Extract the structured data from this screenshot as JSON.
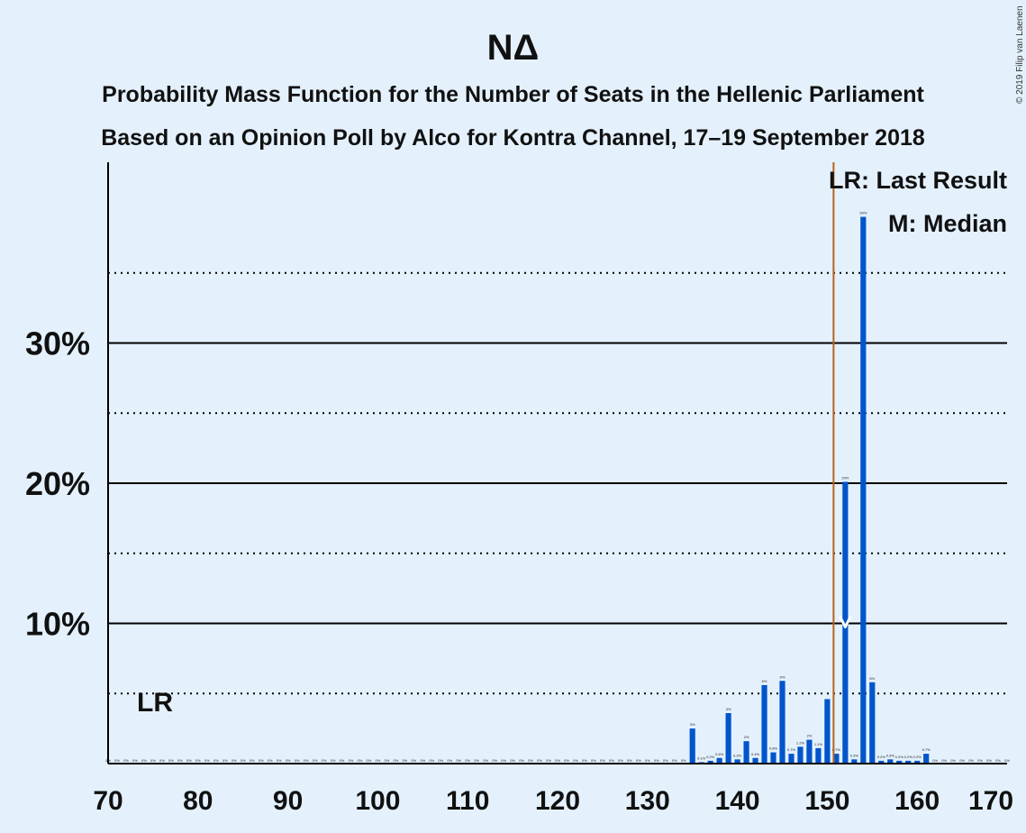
{
  "chart_data": {
    "type": "bar",
    "title": "ΝΔ",
    "subtitle_lines": [
      "Probability Mass Function for the Number of Seats in the Hellenic Parliament",
      "Based on an Opinion Poll by Alco for Kontra Channel, 17–19 September 2018"
    ],
    "copyright": "© 2019 Filip van Laenen",
    "xlim": [
      70,
      170
    ],
    "ylim": [
      0,
      42
    ],
    "x_ticks": [
      70,
      80,
      90,
      100,
      110,
      120,
      130,
      140,
      150,
      160,
      170
    ],
    "y_ticks_major": [
      {
        "value": 10,
        "label": "10%"
      },
      {
        "value": 20,
        "label": "20%"
      },
      {
        "value": 30,
        "label": "30%"
      }
    ],
    "y_gridlines_minor": [
      5,
      15,
      25,
      35
    ],
    "bar_color": "#0055cc",
    "last_result": {
      "seat": 151,
      "marker_label": "LR",
      "legend": "LR: Last Result",
      "color": "#b5651d"
    },
    "median": {
      "seat": 152,
      "marker_label": "M",
      "legend": "M: Median"
    },
    "seats": [
      135,
      136,
      137,
      138,
      139,
      140,
      141,
      142,
      143,
      144,
      145,
      146,
      147,
      148,
      149,
      150,
      151,
      152,
      153,
      154,
      155,
      156,
      157,
      158,
      159,
      160,
      161
    ],
    "values": [
      2.5,
      0.1,
      0.2,
      0.4,
      3.6,
      0.3,
      1.6,
      0.4,
      5.6,
      0.8,
      5.9,
      0.7,
      1.2,
      1.7,
      1.1,
      4.6,
      0.7,
      20.1,
      0.3,
      39.0,
      5.8,
      0.2,
      0.3,
      0.2,
      0.2,
      0.2,
      0.7
    ],
    "value_labels": [
      "3%",
      "0.1%",
      "0.2%",
      "0.4%",
      "4%",
      "0.3%",
      "2%",
      "0.4%",
      "6%",
      "0.8%",
      "6%",
      "0.7%",
      "1.2%",
      "2%",
      "1.1%",
      "",
      "0.7%",
      "20%",
      "0.3%",
      "39%",
      "6%",
      "0.2%",
      "0.3%",
      "0.2%",
      "0.2%",
      "0.2%",
      "0.7%"
    ]
  }
}
